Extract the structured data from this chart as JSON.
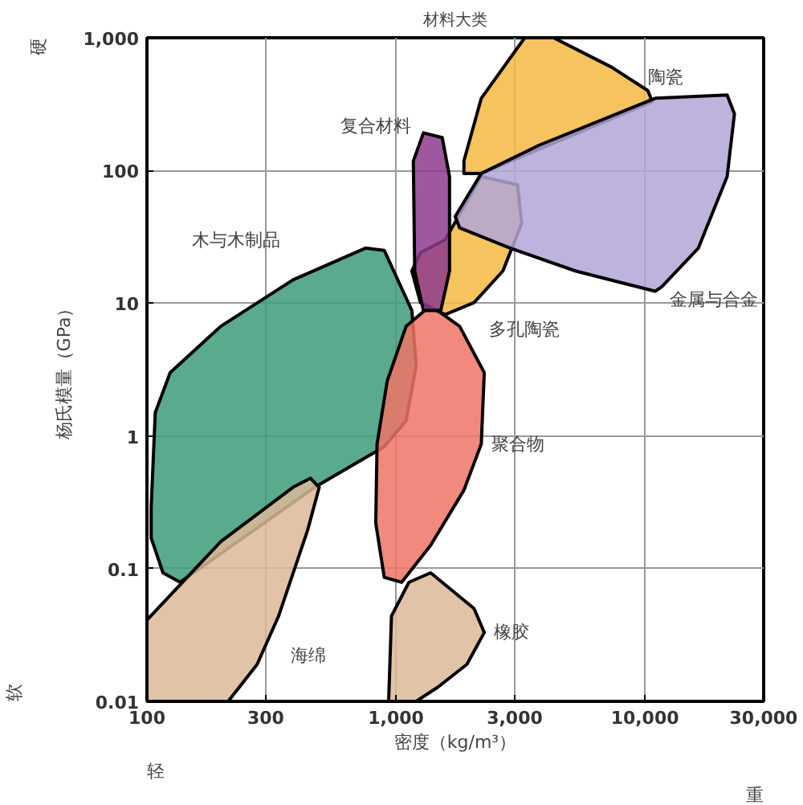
{
  "chart_data": {
    "type": "area",
    "title": "材料大类",
    "xlabel": "密度（kg/m³）",
    "ylabel": "杨氏模量（GPa）",
    "log": "xy",
    "grid": true,
    "xlim": [
      100,
      30000
    ],
    "ylim": [
      0.01,
      1000
    ],
    "xticks": [
      100,
      300,
      {
        "value": 1000,
        "label": "1,000"
      },
      {
        "value": 3000,
        "label": "3,000"
      },
      {
        "value": 10000,
        "label": "10,000"
      },
      {
        "value": 30000,
        "label": "30,000"
      }
    ],
    "yticks": [
      0.01,
      0.1,
      1,
      10,
      100,
      {
        "value": 1000,
        "label": "1,000"
      }
    ],
    "series": [
      {
        "name": "木与木制品",
        "color": "#3d9c7a",
        "x": [
          104,
          108,
          124,
          198,
          386,
          755,
          898,
          1159,
          1206,
          1099,
          898,
          472,
          136,
          116,
          104
        ],
        "values": [
          0.29,
          1.5,
          3.0,
          6.7,
          15,
          26,
          25,
          8.8,
          3.4,
          1.3,
          0.83,
          0.41,
          0.079,
          0.093,
          0.17
        ]
      },
      {
        "name": "海绵",
        "color": "#dcb898",
        "x": [
          100,
          198,
          386,
          454,
          492,
          442,
          338,
          277,
          212,
          100
        ],
        "values": [
          0.041,
          0.16,
          0.41,
          0.48,
          0.41,
          0.195,
          0.044,
          0.019,
          0.01,
          0.01
        ]
      },
      {
        "name": "聚合物",
        "color": "#ee7466",
        "x": [
          1379,
          1803,
          2264,
          2203,
          1876,
          1379,
          1055,
          898,
          830,
          840,
          923,
          1099
        ],
        "values": [
          9.6,
          6.7,
          3.0,
          0.87,
          0.39,
          0.15,
          0.079,
          0.086,
          0.22,
          0.87,
          2.6,
          6.7
        ]
      },
      {
        "name": "橡胶",
        "color": "#dcb898",
        "x": [
          935,
          960,
          1128,
          1379,
          2061,
          2264,
          1927,
          1475,
          1206
        ],
        "values": [
          0.01,
          0.044,
          0.079,
          0.093,
          0.05,
          0.033,
          0.019,
          0.0128,
          0.01
        ]
      },
      {
        "name": "多孔陶瓷",
        "color": "#f5b942",
        "x": [
          1159,
          1255,
          1576,
          2203,
          3080,
          3200,
          2690,
          2061,
          1576,
          1255
        ],
        "values": [
          17.5,
          24,
          30,
          90,
          78,
          40,
          17.5,
          10.1,
          8.2,
          10.1
        ]
      },
      {
        "name": "复合材料",
        "color": "#8e3a8e",
        "x": [
          1290,
          1535,
          1642,
          1642,
          1514,
          1290,
          1190,
          1175
        ],
        "values": [
          192,
          177,
          90,
          17.5,
          8.8,
          8.8,
          17.5,
          118
        ]
      },
      {
        "name": "陶瓷",
        "color": "#f5b942",
        "x": [
          1876,
          2203,
          3290,
          4300,
          7350,
          10280,
          10700,
          2203,
          1876
        ],
        "values": [
          118,
          350,
          1000,
          1000,
          600,
          400,
          330,
          95,
          95
        ]
      },
      {
        "name": "金属与合金",
        "color": "#b3a6d6",
        "x": [
          1730,
          2203,
          3760,
          11000,
          21400,
          22900,
          21400,
          16400,
          11700,
          11000,
          5260,
          2880,
          1803
        ],
        "values": [
          45,
          95,
          155,
          350,
          370,
          267,
          90,
          26,
          13.3,
          12.3,
          17.5,
          26,
          37
        ]
      }
    ],
    "annotations": [
      "硬",
      "软",
      "轻",
      "重"
    ]
  }
}
